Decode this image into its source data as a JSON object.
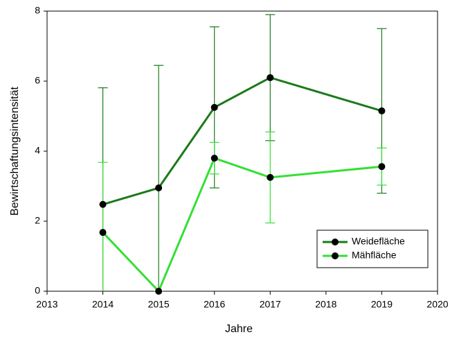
{
  "chart_data": {
    "type": "line",
    "x_label": "Jahre",
    "y_label": "Bewirtschaftungsintensität",
    "x": [
      2014,
      2015,
      2016,
      2017,
      2019
    ],
    "series": [
      {
        "name": "Weidefläche",
        "color": "#1a7a1a",
        "values": [
          2.48,
          2.95,
          5.25,
          6.1,
          5.15
        ],
        "errors": [
          3.33,
          3.5,
          2.3,
          1.8,
          2.35
        ]
      },
      {
        "name": "Mähfläche",
        "color": "#33e033",
        "values": [
          1.68,
          0,
          3.8,
          3.25,
          3.56
        ],
        "errors": [
          2.0,
          0,
          0.45,
          1.3,
          0.53
        ]
      }
    ],
    "xlim": [
      2013,
      2020
    ],
    "xticks": [
      2013,
      2014,
      2015,
      2016,
      2017,
      2018,
      2019,
      2020
    ],
    "ylim": [
      0,
      8
    ],
    "yticks": [
      0,
      2,
      4,
      6,
      8
    ],
    "grid": false,
    "legend": "lower right"
  }
}
